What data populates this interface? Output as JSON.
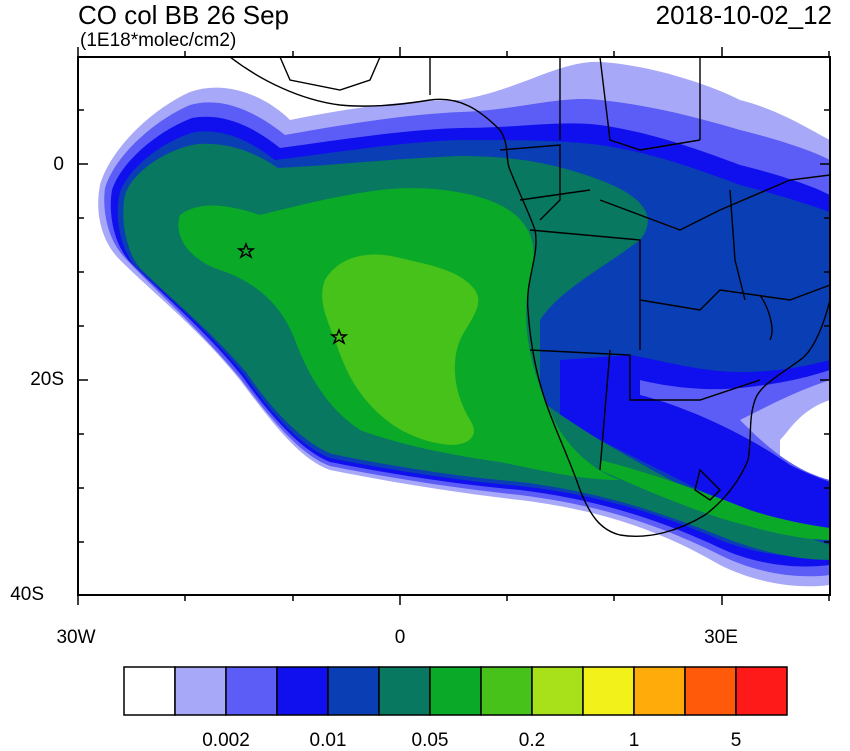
{
  "title": "CO col BB 26 Sep",
  "units": "(1E18*molec/cm2)",
  "timestamp": "2018-10-02_12",
  "lat_labels": [
    "0",
    "20S",
    "40S"
  ],
  "lon_labels": [
    "30W",
    "0",
    "30E"
  ],
  "colorbar": {
    "colors": [
      "#ffffff",
      "#a8a8f8",
      "#5c5cf6",
      "#1010ee",
      "#0a3eb4",
      "#087860",
      "#0aaa28",
      "#46c21a",
      "#a8e01a",
      "#f2f21a",
      "#ffac0a",
      "#ff5a0a",
      "#ff1a1a"
    ],
    "labels": [
      "0.002",
      "0.01",
      "0.05",
      "0.2",
      "1",
      "5"
    ]
  },
  "markers": [
    {
      "name": "star-marker-1",
      "lon": -14.5,
      "lat": -8
    },
    {
      "name": "star-marker-2",
      "lon": -5.5,
      "lat": -16
    }
  ]
}
